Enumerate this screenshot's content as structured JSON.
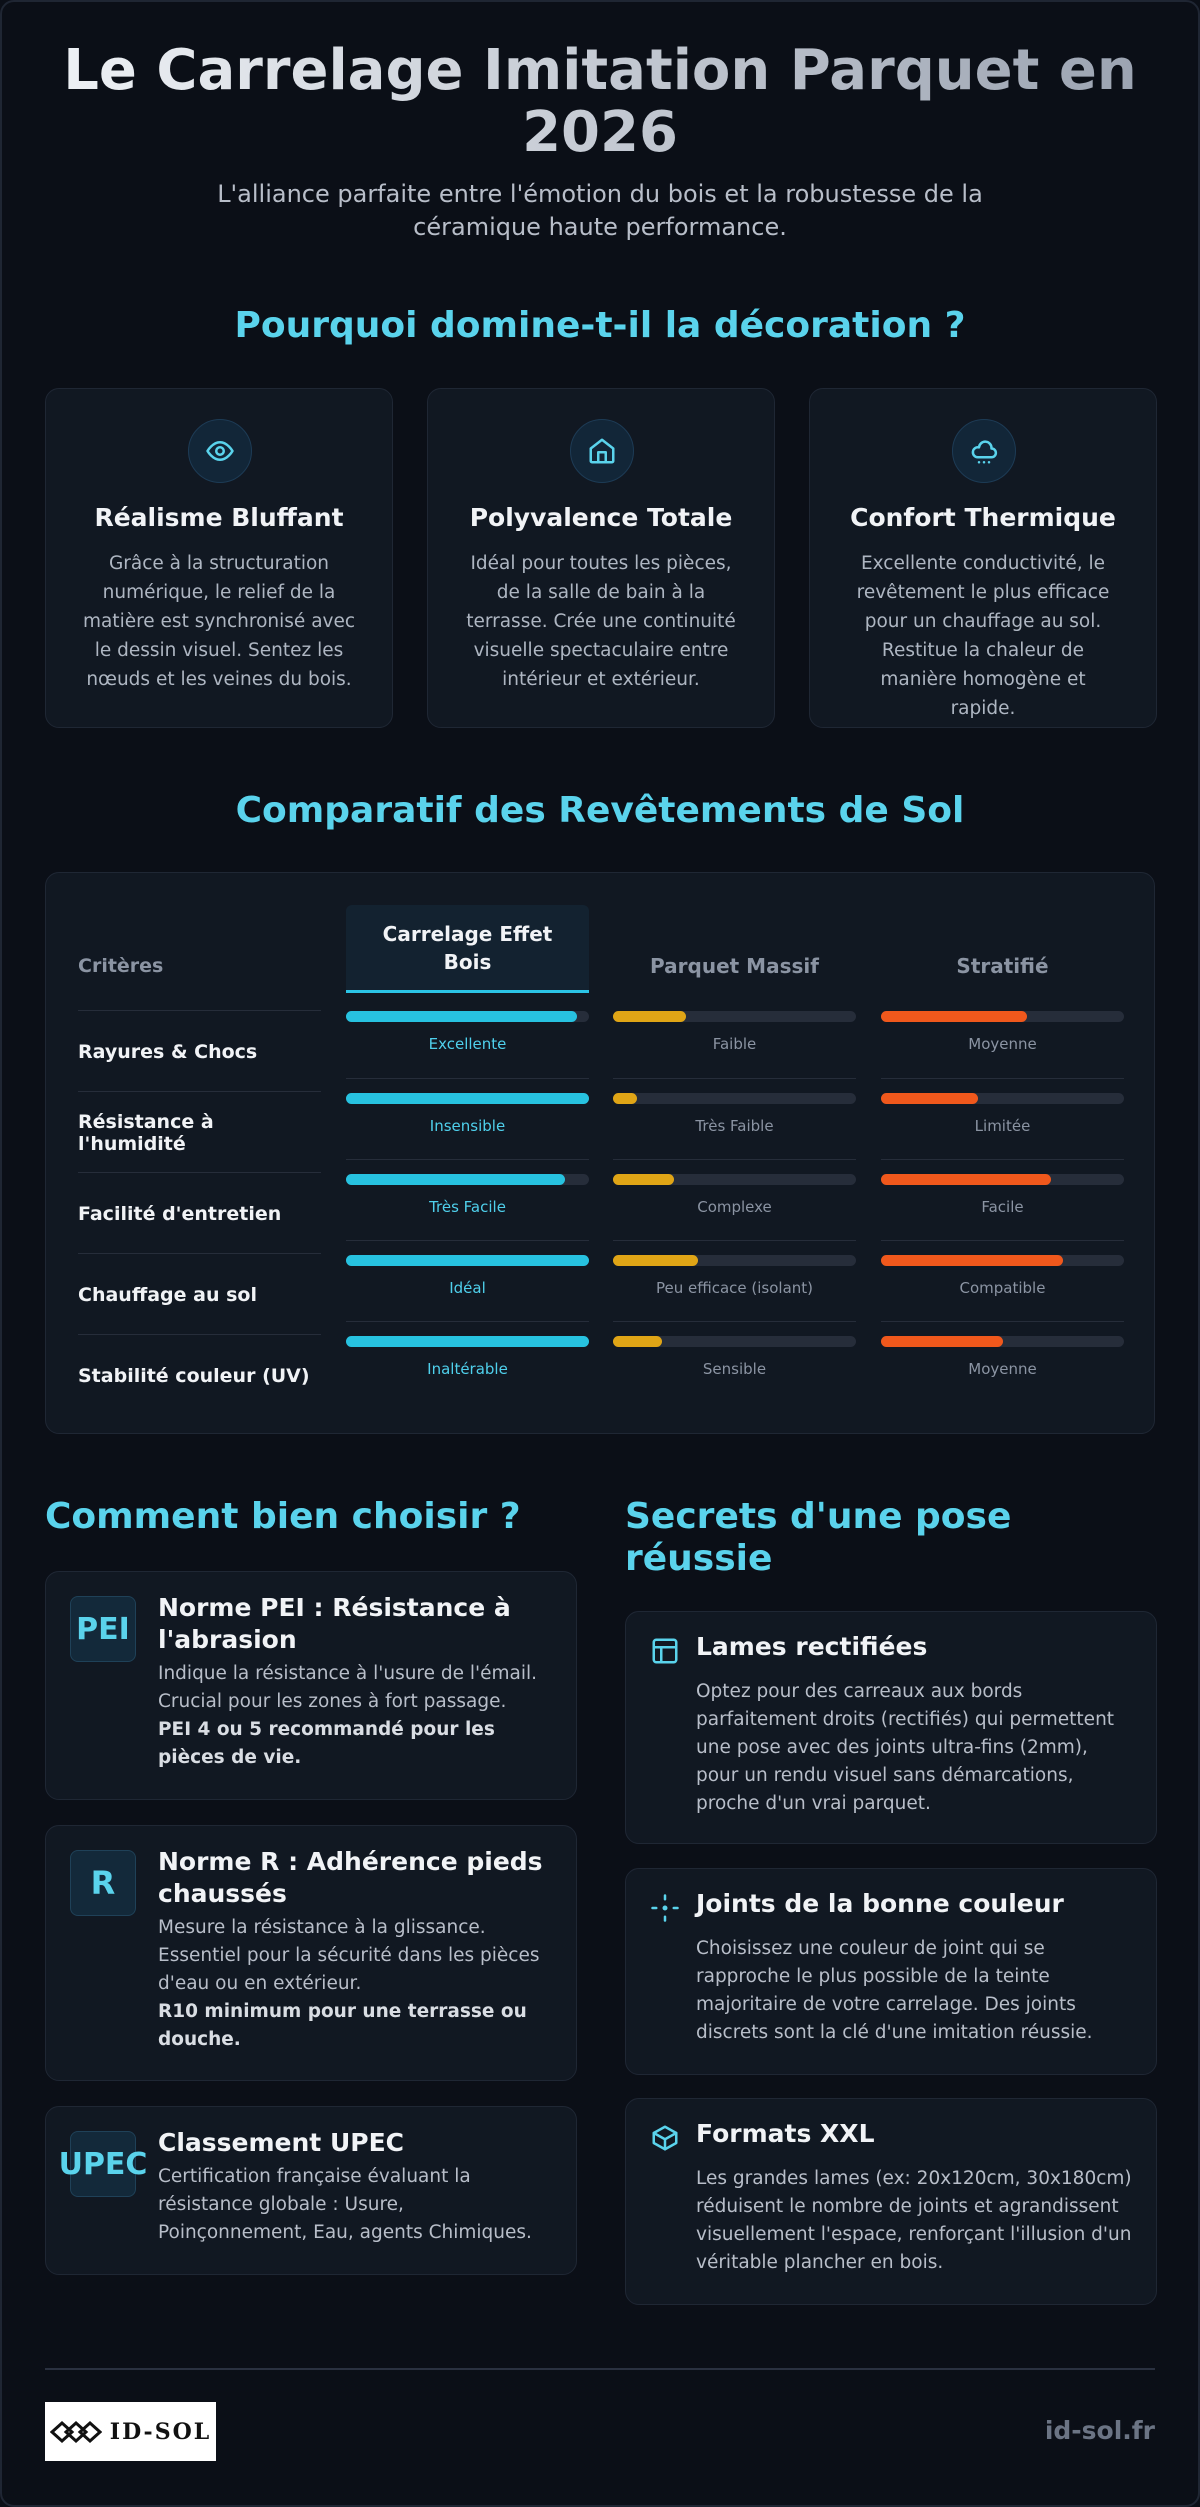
{
  "header": {
    "title": "Le Carrelage Imitation Parquet en 2026",
    "subtitle": "L'alliance parfaite entre l'émotion du bois et la robustesse de la céramique haute performance."
  },
  "why": {
    "heading": "Pourquoi domine-t-il la décoration ?",
    "cards": [
      {
        "title": "Réalisme Bluffant",
        "text": "Grâce à la structuration numérique, le relief de la matière est synchronisé avec le dessin visuel. Sentez les nœuds et les veines du bois."
      },
      {
        "title": "Polyvalence Totale",
        "text": "Idéal pour toutes les pièces, de la salle de bain à la terrasse. Crée une continuité visuelle spectaculaire entre intérieur et extérieur."
      },
      {
        "title": "Confort Thermique",
        "text": "Excellente conductivité, le revêtement le plus efficace pour un chauffage au sol. Restitue la chaleur de manière homogène et rapide."
      }
    ]
  },
  "comparison": {
    "heading": "Comparatif des Revêtements de Sol",
    "columns": [
      "Critères",
      "Carrelage Effet Bois",
      "Parquet Massif",
      "Stratifié"
    ],
    "rows": [
      {
        "criterion": "Rayures & Chocs",
        "cells": [
          {
            "label": "Excellente",
            "level": 95
          },
          {
            "label": "Faible",
            "level": 30
          },
          {
            "label": "Moyenne",
            "level": 60
          }
        ]
      },
      {
        "criterion": "Résistance à l'humidité",
        "cells": [
          {
            "label": "Insensible",
            "level": 100
          },
          {
            "label": "Très Faible",
            "level": 10
          },
          {
            "label": "Limitée",
            "level": 40
          }
        ]
      },
      {
        "criterion": "Facilité d'entretien",
        "cells": [
          {
            "label": "Très Facile",
            "level": 90
          },
          {
            "label": "Complexe",
            "level": 25
          },
          {
            "label": "Facile",
            "level": 70
          }
        ]
      },
      {
        "criterion": "Chauffage au sol",
        "cells": [
          {
            "label": "Idéal",
            "level": 100
          },
          {
            "label": "Peu efficace (isolant)",
            "level": 35
          },
          {
            "label": "Compatible",
            "level": 75
          }
        ]
      },
      {
        "criterion": "Stabilité couleur (UV)",
        "cells": [
          {
            "label": "Inaltérable",
            "level": 100
          },
          {
            "label": "Sensible",
            "level": 20
          },
          {
            "label": "Moyenne",
            "level": 50
          }
        ]
      }
    ]
  },
  "choose": {
    "heading": "Comment bien choisir ?",
    "items": [
      {
        "badge": "PEI",
        "title": "Norme PEI : Résistance à l'abrasion",
        "text": "Indique la résistance à l'usure de l'émail. Crucial pour les zones à fort passage.",
        "note": "PEI 4 ou 5 recommandé pour les pièces de vie."
      },
      {
        "badge": "R",
        "title": "Norme R : Adhérence pieds chaussés",
        "text": "Mesure la résistance à la glissance. Essentiel pour la sécurité dans les pièces d'eau ou en extérieur.",
        "note": "R10 minimum pour une terrasse ou douche."
      },
      {
        "badge": "UPEC",
        "title": "Classement UPEC",
        "text": "Certification française évaluant la résistance globale : Usure, Poinçonnement, Eau, agents Chimiques."
      }
    ]
  },
  "tips": {
    "heading": "Secrets d'une pose réussie",
    "items": [
      {
        "title": "Lames rectifiées",
        "text": "Optez pour des carreaux aux bords parfaitement droits (rectifiés) qui permettent une pose avec des joints ultra-fins (2mm), pour un rendu visuel sans démarcations, proche d'un vrai parquet."
      },
      {
        "title": "Joints de la bonne couleur",
        "text": "Choisissez une couleur de joint qui se rapproche le plus possible de la teinte majoritaire de votre carrelage. Des joints discrets sont la clé d'une imitation réussie."
      },
      {
        "title": "Formats XXL",
        "text": "Les grandes lames (ex: 20x120cm, 30x180cm) réduisent le nombre de joints et agrandissent visuellement l'espace, renforçant l'illusion d'un véritable plancher en bois."
      }
    ]
  },
  "footer": {
    "logo": "ID-SOL",
    "url": "id-sol.fr"
  }
}
